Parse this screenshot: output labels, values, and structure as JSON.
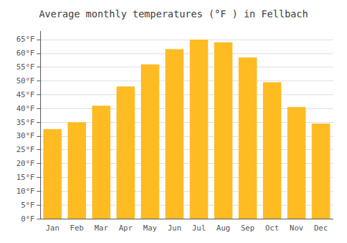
{
  "chart_data": {
    "type": "bar",
    "title": "Average monthly temperatures (°F ) in Fellbach",
    "categories": [
      "Jan",
      "Feb",
      "Mar",
      "Apr",
      "May",
      "Jun",
      "Jul",
      "Aug",
      "Sep",
      "Oct",
      "Nov",
      "Dec"
    ],
    "values": [
      32.5,
      35.0,
      41.0,
      48.0,
      56.0,
      61.5,
      65.0,
      64.0,
      58.5,
      49.5,
      40.5,
      34.5
    ],
    "color": "#FFBB22",
    "ylim": [
      0,
      68
    ],
    "yticks": [
      {
        "value": 0,
        "label": "0°F"
      },
      {
        "value": 5,
        "label": "5°F"
      },
      {
        "value": 10,
        "label": "10°F"
      },
      {
        "value": 15,
        "label": "15°F"
      },
      {
        "value": 20,
        "label": "20°F"
      },
      {
        "value": 25,
        "label": "25°F"
      },
      {
        "value": 30,
        "label": "30°F"
      },
      {
        "value": 35,
        "label": "35°F"
      },
      {
        "value": 40,
        "label": "40°F"
      },
      {
        "value": 45,
        "label": "45°F"
      },
      {
        "value": 50,
        "label": "50°F"
      },
      {
        "value": 55,
        "label": "55°F"
      },
      {
        "value": 60,
        "label": "60°F"
      },
      {
        "value": 65,
        "label": "65°F"
      }
    ],
    "grid": true
  }
}
